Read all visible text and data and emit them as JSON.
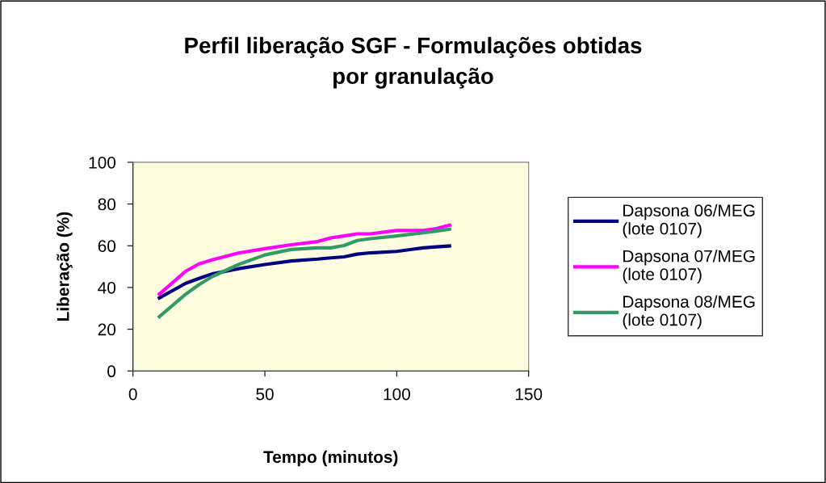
{
  "chart_data": {
    "type": "line",
    "title": "Perfil liberação SGF - Formulações obtidas\npor granulação",
    "xlabel": "Tempo (minutos)",
    "ylabel": "Liberação (%)",
    "x": [
      10,
      20,
      25,
      30,
      40,
      50,
      60,
      70,
      75,
      80,
      85,
      90,
      100,
      110,
      115,
      120
    ],
    "series": [
      {
        "name": "Dapsona 06/MEG\n(lote 0107)",
        "color": "#000080",
        "values": [
          35,
          42,
          44.3,
          46.5,
          49,
          51,
          52.7,
          53.6,
          54.2,
          54.7,
          56,
          56.6,
          57.3,
          59,
          59.5,
          59.9
        ]
      },
      {
        "name": "Dapsona 07/MEG\n(lote 0107)",
        "color": "#ff00ff",
        "values": [
          36.8,
          47.8,
          51.3,
          53.2,
          56.5,
          58.6,
          60.5,
          62,
          63.8,
          64.7,
          65.7,
          65.7,
          67.3,
          67.3,
          68.2,
          69.9
        ]
      },
      {
        "name": "Dapsona 08/MEG\n(lote 0107)",
        "color": "#339966",
        "values": [
          26,
          36.8,
          41.3,
          45.2,
          51,
          55.6,
          58.2,
          59,
          59,
          60.1,
          62.5,
          63.4,
          64.7,
          66.2,
          67,
          67.9
        ]
      }
    ],
    "xlim": [
      0,
      150
    ],
    "xticks": [
      0,
      50,
      100,
      150
    ],
    "ylim": [
      0,
      100
    ],
    "yticks": [
      0,
      20,
      40,
      60,
      80,
      100
    ],
    "grid": false,
    "legend": "right",
    "marker": "none",
    "line_style": "solid"
  }
}
